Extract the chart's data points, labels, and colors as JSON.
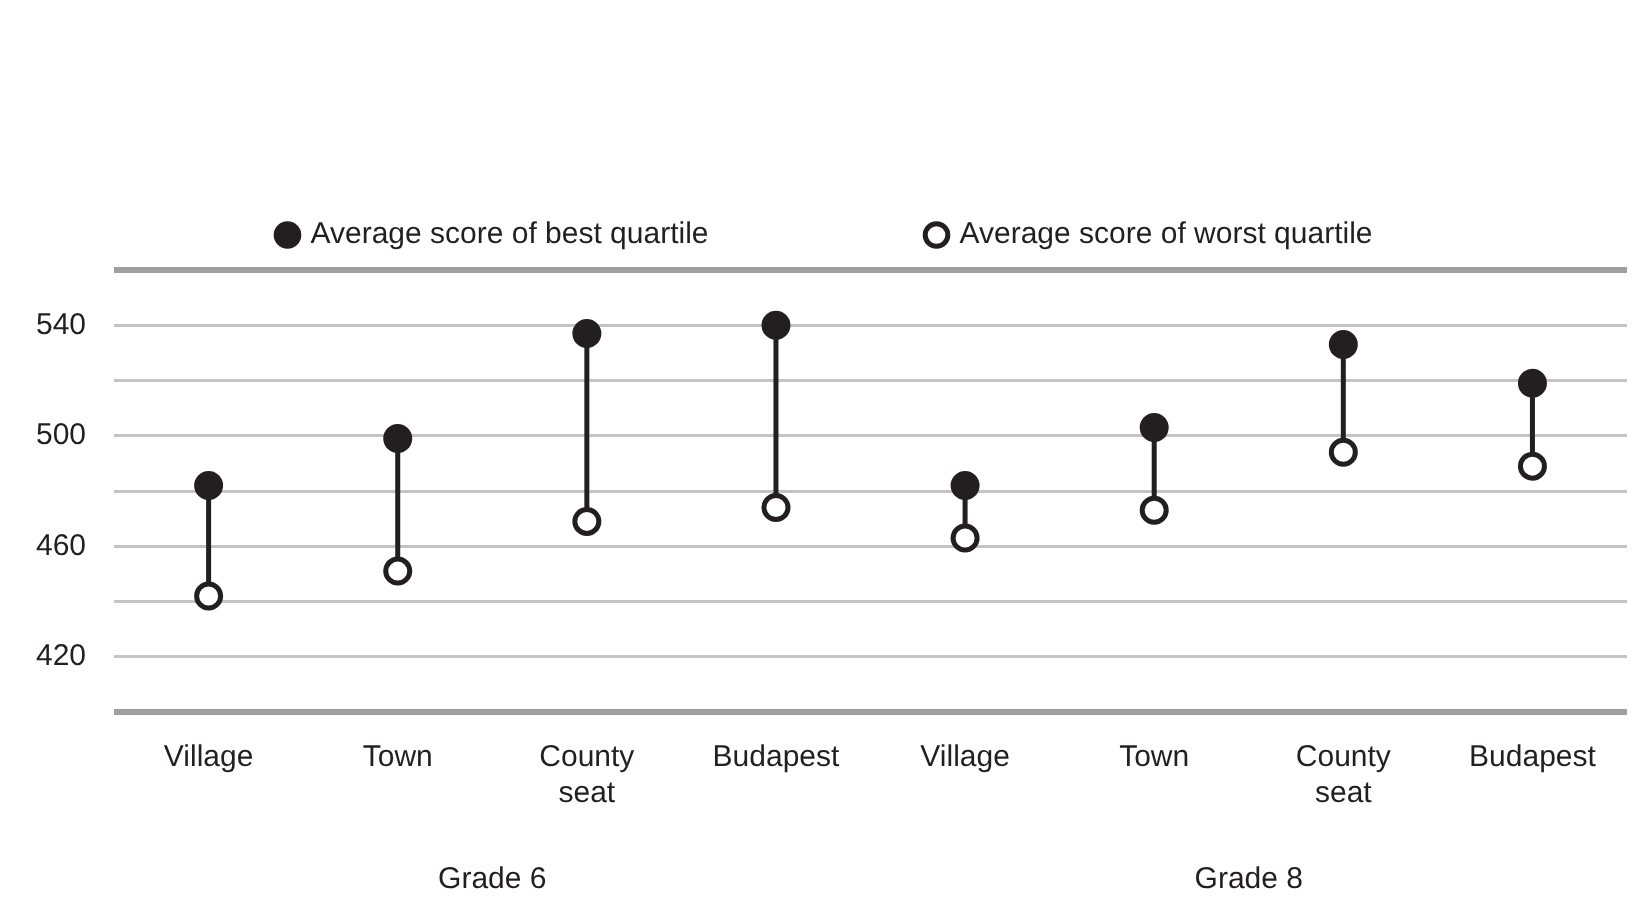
{
  "chart_data": {
    "type": "scatter",
    "categories": [
      "Village",
      "Town",
      "County seat",
      "Budapest",
      "Village",
      "Town",
      "County seat",
      "Budapest"
    ],
    "series": [
      {
        "name": "Average score of best quartile",
        "color": "#231f20",
        "values": [
          482,
          499,
          537,
          540,
          482,
          503,
          533,
          519
        ]
      },
      {
        "name": "Average score of worst quartile",
        "color": "#231f20",
        "values": [
          442,
          451,
          469,
          474,
          463,
          473,
          494,
          489
        ]
      }
    ],
    "ylim": [
      400,
      560
    ],
    "yticks": [
      {
        "value": 400,
        "label": null
      },
      420,
      {
        "value": 440,
        "label": null
      },
      460,
      {
        "value": 480,
        "label": null
      },
      500,
      {
        "value": 520,
        "label": null
      },
      540,
      {
        "value": 560,
        "label": null
      }
    ],
    "annotations": [
      "Grade 6",
      "Grade 8"
    ],
    "grid": "y",
    "legend": "top",
    "marker": "circle"
  }
}
